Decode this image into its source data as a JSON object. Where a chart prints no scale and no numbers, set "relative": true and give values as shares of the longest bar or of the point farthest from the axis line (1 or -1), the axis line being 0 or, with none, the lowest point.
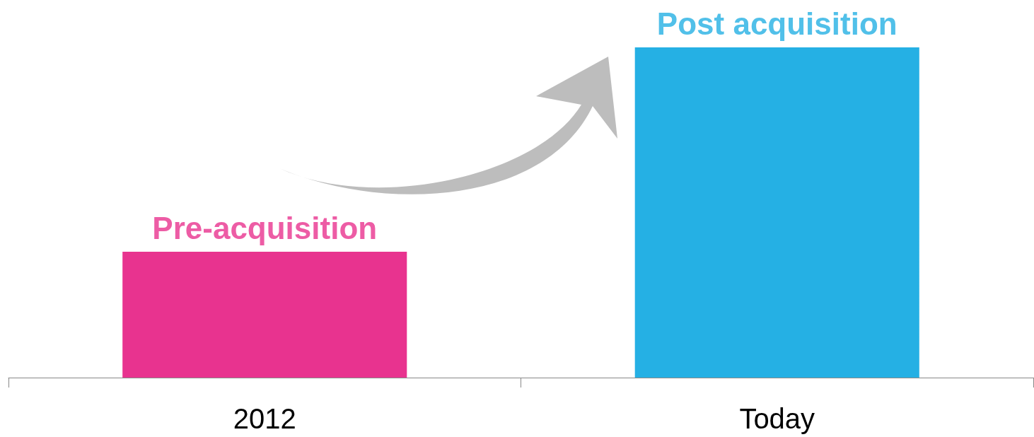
{
  "chart_data": {
    "type": "bar",
    "relative": true,
    "categories": [
      "2012",
      "Today"
    ],
    "values": [
      0.381,
      1
    ],
    "colors": [
      "#e8338f",
      "#25b0e4"
    ],
    "annotations": [
      {
        "text": "Pre-acquisition",
        "x": "2012",
        "y": 0.381
      },
      {
        "text": "Post acquisition",
        "x": "Today",
        "y": 1
      }
    ],
    "grid": false
  }
}
